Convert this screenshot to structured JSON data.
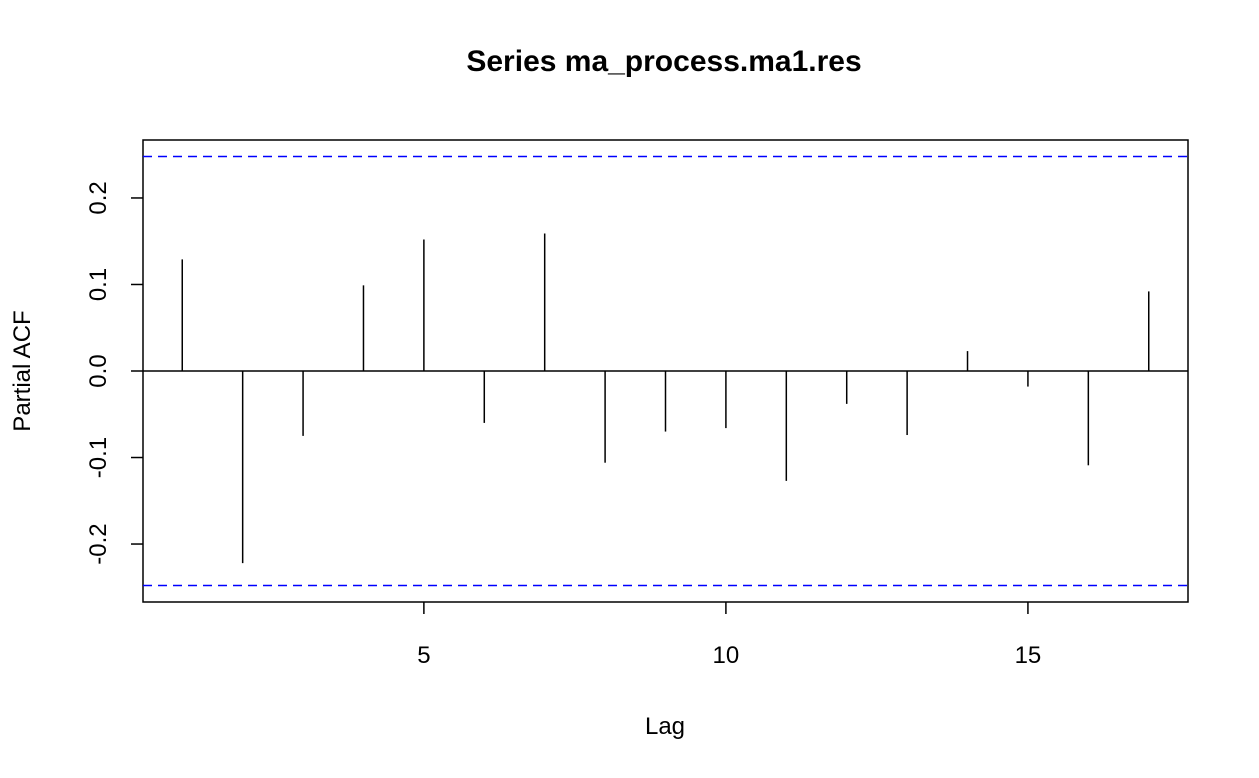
{
  "chart_data": {
    "type": "bar",
    "title": "Series  ma_process.ma1.res",
    "xlabel": "Lag",
    "ylabel": "Partial ACF",
    "x": [
      1,
      2,
      3,
      4,
      5,
      6,
      7,
      8,
      9,
      10,
      11,
      12,
      13,
      14,
      15,
      16,
      17
    ],
    "values": [
      0.129,
      -0.222,
      -0.075,
      0.099,
      0.152,
      -0.06,
      0.159,
      -0.106,
      -0.07,
      -0.066,
      -0.127,
      -0.038,
      -0.074,
      0.023,
      -0.018,
      -0.109,
      0.092
    ],
    "confidence_bound": 0.248,
    "xlim": [
      0.35,
      17.65
    ],
    "ylim": [
      -0.267,
      0.267
    ],
    "xticks": [
      5,
      10,
      15
    ],
    "xtick_labels": [
      "5",
      "10",
      "15"
    ],
    "yticks": [
      -0.2,
      -0.1,
      0.0,
      0.1,
      0.2
    ],
    "ytick_labels": [
      "-0.2",
      "-0.1",
      "0.0",
      "0.1",
      "0.2"
    ],
    "grid": false,
    "colors": {
      "bars": "#000000",
      "bounds": "#0000ff",
      "frame": "#000000"
    }
  }
}
